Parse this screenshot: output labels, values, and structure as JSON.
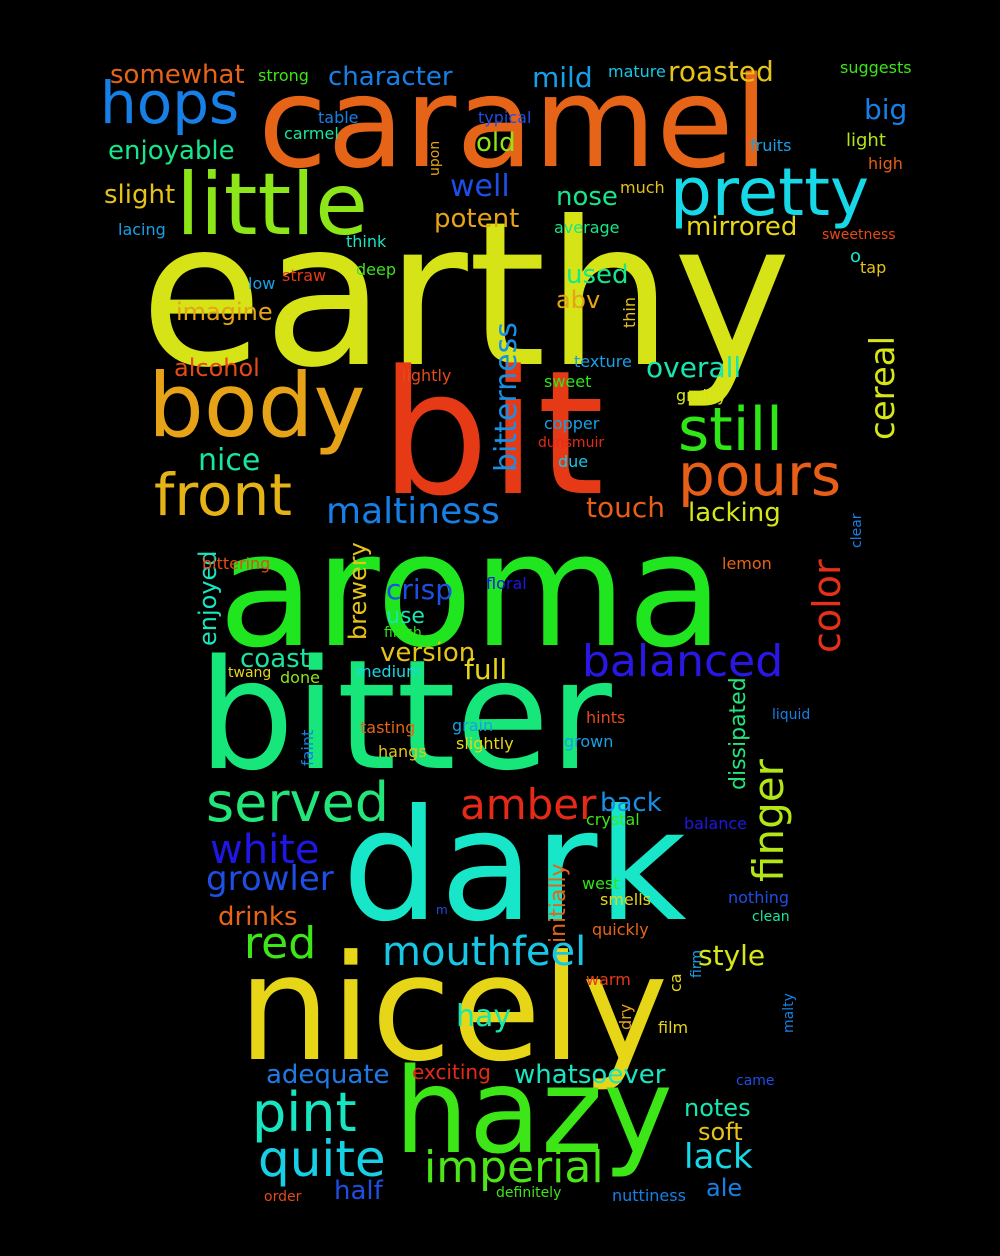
{
  "words": [
    {
      "text": "earthy",
      "color": "#d6e317"
    },
    {
      "text": "bit",
      "color": "#e63a17"
    },
    {
      "text": "aroma",
      "color": "#1fe61f"
    },
    {
      "text": "bitter",
      "color": "#17e67a"
    },
    {
      "text": "dark",
      "color": "#17e6c8"
    },
    {
      "text": "nicely",
      "color": "#e6d617"
    },
    {
      "text": "caramel",
      "color": "#e66417"
    },
    {
      "text": "hazy",
      "color": "#3ce617"
    },
    {
      "text": "body",
      "color": "#e6a317"
    },
    {
      "text": "little",
      "color": "#8de617"
    },
    {
      "text": "pretty",
      "color": "#17d8e6"
    },
    {
      "text": "hops",
      "color": "#1780e6"
    },
    {
      "text": "still",
      "color": "#2fe617"
    },
    {
      "text": "pours",
      "color": "#e65e17"
    },
    {
      "text": "front",
      "color": "#e6b317"
    },
    {
      "text": "served",
      "color": "#22e67a"
    },
    {
      "text": "pint",
      "color": "#17e6c0"
    },
    {
      "text": "quite",
      "color": "#17d0e6"
    },
    {
      "text": "imperial",
      "color": "#4de617"
    },
    {
      "text": "balanced",
      "color": "#2a17e6"
    },
    {
      "text": "mouthfeel",
      "color": "#17c8e6"
    },
    {
      "text": "red",
      "color": "#3ce617"
    },
    {
      "text": "amber",
      "color": "#e62a17"
    },
    {
      "text": "white",
      "color": "#1e17e6"
    },
    {
      "text": "growler",
      "color": "#1f4ee6"
    },
    {
      "text": "maltiness",
      "color": "#1780e6"
    },
    {
      "text": "color",
      "color": "#e63017"
    },
    {
      "text": "finger",
      "color": "#b3e617"
    },
    {
      "text": "bitterness",
      "color": "#1790e6"
    },
    {
      "text": "cereal",
      "color": "#d6e617"
    },
    {
      "text": "lack",
      "color": "#17d8e6"
    },
    {
      "text": "hay",
      "color": "#17e6b0"
    },
    {
      "text": "ale",
      "color": "#1780e6"
    },
    {
      "text": "nice",
      "color": "#17e6a0"
    },
    {
      "text": "enjoyable",
      "color": "#17e68a"
    },
    {
      "text": "well",
      "color": "#1f4ee6"
    },
    {
      "text": "character",
      "color": "#1780e6"
    },
    {
      "text": "roasted",
      "color": "#e6c317"
    },
    {
      "text": "somewhat",
      "color": "#e66417"
    },
    {
      "text": "mild",
      "color": "#17a0e6"
    },
    {
      "text": "slight",
      "color": "#e6c317"
    },
    {
      "text": "old",
      "color": "#8de617"
    },
    {
      "text": "nose",
      "color": "#17e68a"
    },
    {
      "text": "potent",
      "color": "#e6a317"
    },
    {
      "text": "mirrored",
      "color": "#e6d617"
    },
    {
      "text": "big",
      "color": "#1780e6"
    },
    {
      "text": "used",
      "color": "#17e68a"
    },
    {
      "text": "abv",
      "color": "#e6a317"
    },
    {
      "text": "imagine",
      "color": "#e6a317"
    },
    {
      "text": "alcohol",
      "color": "#e64a17"
    },
    {
      "text": "overall",
      "color": "#17e6b0"
    },
    {
      "text": "touch",
      "color": "#e65e17"
    },
    {
      "text": "lacking",
      "color": "#d6e617"
    },
    {
      "text": "crisp",
      "color": "#1f4ee6"
    },
    {
      "text": "use",
      "color": "#17e6b0"
    },
    {
      "text": "version",
      "color": "#e6c317"
    },
    {
      "text": "full",
      "color": "#e6d617"
    },
    {
      "text": "coast",
      "color": "#17e6a0"
    },
    {
      "text": "brewery",
      "color": "#e6c317"
    },
    {
      "text": "enjoyed",
      "color": "#17e6c0"
    },
    {
      "text": "back",
      "color": "#1790e6"
    },
    {
      "text": "dissipated",
      "color": "#22e67a"
    },
    {
      "text": "style",
      "color": "#d6e617"
    },
    {
      "text": "drinks",
      "color": "#e66417"
    },
    {
      "text": "adequate",
      "color": "#1f7ae6"
    },
    {
      "text": "whatsoever",
      "color": "#17e6c0"
    },
    {
      "text": "notes",
      "color": "#17e6b0"
    },
    {
      "text": "soft",
      "color": "#e6c317"
    },
    {
      "text": "half",
      "color": "#1f4ee6"
    },
    {
      "text": "initially",
      "color": "#e66417"
    },
    {
      "text": "exciting",
      "color": "#e62a17"
    },
    {
      "text": "strong",
      "color": "#3ce617"
    },
    {
      "text": "mature",
      "color": "#17c8e6"
    },
    {
      "text": "suggests",
      "color": "#3ce617"
    },
    {
      "text": "typical",
      "color": "#1f4ee6"
    },
    {
      "text": "table",
      "color": "#1780e6"
    },
    {
      "text": "carmel",
      "color": "#17e6a0"
    },
    {
      "text": "upon",
      "color": "#e6a317"
    },
    {
      "text": "light",
      "color": "#b3e617"
    },
    {
      "text": "fruits",
      "color": "#17a0e6"
    },
    {
      "text": "high",
      "color": "#e65e17"
    },
    {
      "text": "much",
      "color": "#e6c317"
    },
    {
      "text": "lacing",
      "color": "#17a0e6"
    },
    {
      "text": "think",
      "color": "#17e6c0"
    },
    {
      "text": "average",
      "color": "#17e68a"
    },
    {
      "text": "sweetness",
      "color": "#e64a17"
    },
    {
      "text": "o",
      "color": "#17e6c8"
    },
    {
      "text": "tap",
      "color": "#e6c317"
    },
    {
      "text": "deep",
      "color": "#3ce617"
    },
    {
      "text": "low",
      "color": "#17a0e6"
    },
    {
      "text": "straw",
      "color": "#e63a17"
    },
    {
      "text": "thin",
      "color": "#e6c317"
    },
    {
      "text": "texture",
      "color": "#17a0e6"
    },
    {
      "text": "lightly",
      "color": "#e64a17"
    },
    {
      "text": "sweet",
      "color": "#2fe617"
    },
    {
      "text": "grainy",
      "color": "#d6e617"
    },
    {
      "text": "copper",
      "color": "#17a0e6"
    },
    {
      "text": "dunsmuir",
      "color": "#e62a17"
    },
    {
      "text": "due",
      "color": "#17c8e6"
    },
    {
      "text": "clear",
      "color": "#1780e6"
    },
    {
      "text": "bittering",
      "color": "#e64a17"
    },
    {
      "text": "floral",
      "color": "#1e17e6"
    },
    {
      "text": "lemon",
      "color": "#e66417"
    },
    {
      "text": "finish",
      "color": "#2fe617"
    },
    {
      "text": "medium",
      "color": "#17d8e6"
    },
    {
      "text": "twang",
      "color": "#e6d617"
    },
    {
      "text": "done",
      "color": "#8de617"
    },
    {
      "text": "tasting",
      "color": "#e66417"
    },
    {
      "text": "grain",
      "color": "#17a0e6"
    },
    {
      "text": "hints",
      "color": "#e64a17"
    },
    {
      "text": "slightly",
      "color": "#e6d617"
    },
    {
      "text": "grown",
      "color": "#17a0e6"
    },
    {
      "text": "hangs",
      "color": "#e6c317"
    },
    {
      "text": "liquid",
      "color": "#1780e6"
    },
    {
      "text": "faint",
      "color": "#1780e6"
    },
    {
      "text": "crystal",
      "color": "#3ce617"
    },
    {
      "text": "balance",
      "color": "#1e17e6"
    },
    {
      "text": "west",
      "color": "#2fe617"
    },
    {
      "text": "smells",
      "color": "#e6d617"
    },
    {
      "text": "nothing",
      "color": "#1f4ee6"
    },
    {
      "text": "m",
      "color": "#1f4ee6"
    },
    {
      "text": "clean",
      "color": "#17e6a0"
    },
    {
      "text": "quickly",
      "color": "#e66417"
    },
    {
      "text": "firm",
      "color": "#17a0e6"
    },
    {
      "text": "warm",
      "color": "#e63a17"
    },
    {
      "text": "ca",
      "color": "#e6d617"
    },
    {
      "text": "dry",
      "color": "#e6a317"
    },
    {
      "text": "film",
      "color": "#e6d617"
    },
    {
      "text": "malty",
      "color": "#1780e6"
    },
    {
      "text": "came",
      "color": "#1f4ee6"
    },
    {
      "text": "order",
      "color": "#e64a17"
    },
    {
      "text": "definitely",
      "color": "#3ce617"
    },
    {
      "text": "nuttiness",
      "color": "#1780e6"
    }
  ]
}
